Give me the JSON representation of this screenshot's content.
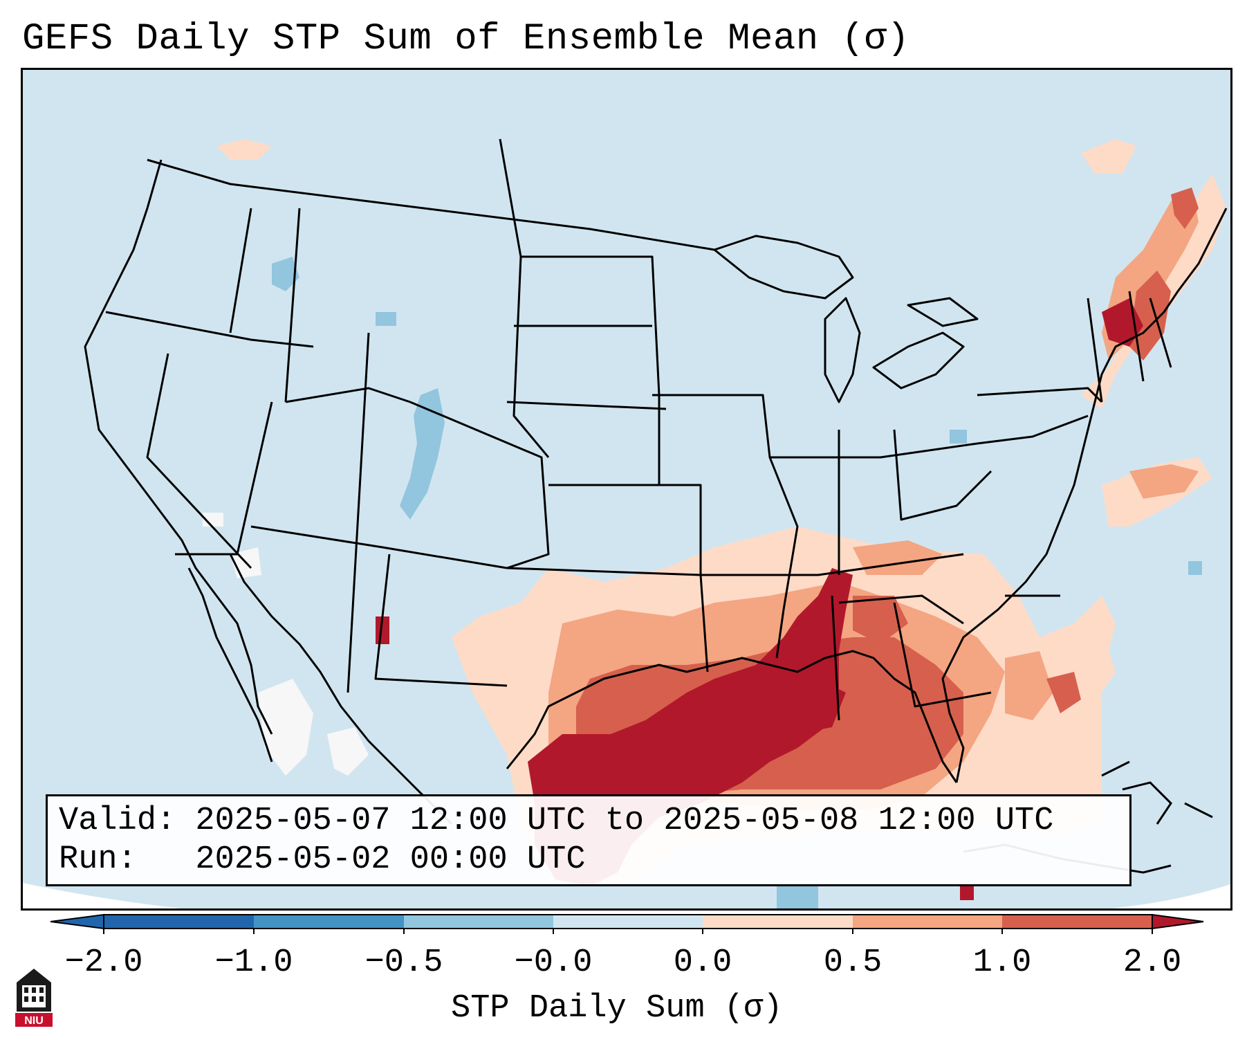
{
  "title": "GEFS Daily STP Sum of Ensemble Mean (σ)",
  "info": {
    "valid_line": "Valid: 2025-05-07 12:00 UTC to 2025-05-08 12:00 UTC",
    "run_line": "Run:   2025-05-02 00:00 UTC"
  },
  "colorbar": {
    "label": "STP Daily Sum (σ)",
    "ticks": [
      "−2.0",
      "−1.0",
      "−0.5",
      "−0.0",
      "0.0",
      "0.5",
      "1.0",
      "2.0"
    ],
    "colors": [
      "#2166ac",
      "#4393c3",
      "#92c5de",
      "#d1e5f0",
      "#f7f7f7",
      "#fddbc7",
      "#f4a582",
      "#d6604d",
      "#b2182b"
    ]
  },
  "logo": {
    "text": "NIU",
    "color": "#c8102e"
  },
  "map_background": "#d1e5f0"
}
